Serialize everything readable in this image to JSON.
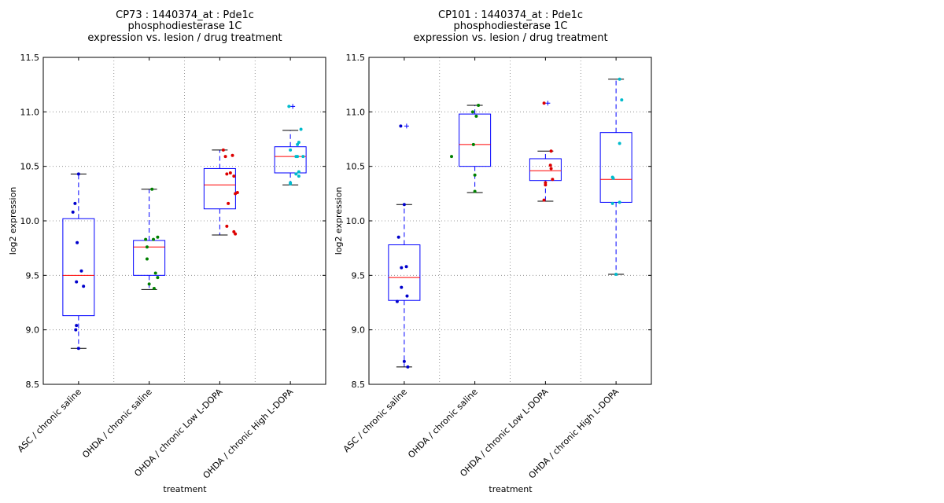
{
  "chart_data": [
    {
      "type": "box",
      "title_lines": [
        "CP73 : 1440374_at : Pde1c",
        "phosphodiesterase 1C",
        "expression vs. lesion / drug treatment"
      ],
      "xlabel": "treatment",
      "ylabel": "log2 expression",
      "ylim": [
        8.5,
        11.5
      ],
      "yticks": [
        "8.5",
        "9.0",
        "9.5",
        "10.0",
        "10.5",
        "11.0",
        "11.5"
      ],
      "grid": true,
      "categories": [
        "ASC / chronic saline",
        "OHDA / chronic saline",
        "OHDA / chronic Low L-DOPA",
        "OHDA / chronic High L-DOPA"
      ],
      "colors": [
        "#0000cc",
        "#008000",
        "#dd0000",
        "#00bbcc"
      ],
      "boxes": [
        {
          "whisker_low": 8.83,
          "q1": 9.13,
          "median": 9.5,
          "q3": 10.02,
          "whisker_high": 10.43,
          "outliers": []
        },
        {
          "whisker_low": 9.37,
          "q1": 9.5,
          "median": 9.76,
          "q3": 9.82,
          "whisker_high": 10.29,
          "outliers": []
        },
        {
          "whisker_low": 9.87,
          "q1": 10.11,
          "median": 10.33,
          "q3": 10.48,
          "whisker_high": 10.65,
          "outliers": []
        },
        {
          "whisker_low": 10.33,
          "q1": 10.44,
          "median": 10.59,
          "q3": 10.68,
          "whisker_high": 10.83,
          "outliers": [
            11.05
          ]
        }
      ],
      "points": [
        [
          {
            "dx": 0.0,
            "y": 10.43
          },
          {
            "dx": -0.05,
            "y": 10.16
          },
          {
            "dx": -0.08,
            "y": 10.08
          },
          {
            "dx": -0.02,
            "y": 9.8
          },
          {
            "dx": 0.04,
            "y": 9.54
          },
          {
            "dx": -0.03,
            "y": 9.44
          },
          {
            "dx": 0.07,
            "y": 9.4
          },
          {
            "dx": -0.03,
            "y": 9.04
          },
          {
            "dx": -0.04,
            "y": 9.0
          },
          {
            "dx": 0.0,
            "y": 8.83
          }
        ],
        [
          {
            "dx": 0.04,
            "y": 10.29
          },
          {
            "dx": 0.12,
            "y": 9.85
          },
          {
            "dx": -0.05,
            "y": 9.83
          },
          {
            "dx": 0.06,
            "y": 9.83
          },
          {
            "dx": -0.03,
            "y": 9.76
          },
          {
            "dx": -0.03,
            "y": 9.65
          },
          {
            "dx": 0.09,
            "y": 9.52
          },
          {
            "dx": 0.12,
            "y": 9.48
          },
          {
            "dx": 0.0,
            "y": 9.42
          },
          {
            "dx": 0.07,
            "y": 9.38
          }
        ],
        [
          {
            "dx": 0.05,
            "y": 10.65
          },
          {
            "dx": 0.18,
            "y": 10.6
          },
          {
            "dx": 0.08,
            "y": 10.59
          },
          {
            "dx": 0.15,
            "y": 10.44
          },
          {
            "dx": 0.1,
            "y": 10.43
          },
          {
            "dx": 0.2,
            "y": 10.41
          },
          {
            "dx": 0.25,
            "y": 10.26
          },
          {
            "dx": 0.22,
            "y": 10.25
          },
          {
            "dx": 0.12,
            "y": 10.16
          },
          {
            "dx": 0.1,
            "y": 9.95
          },
          {
            "dx": 0.2,
            "y": 9.9
          },
          {
            "dx": 0.22,
            "y": 9.88
          }
        ],
        [
          {
            "dx": -0.02,
            "y": 11.05
          },
          {
            "dx": 0.15,
            "y": 10.84
          },
          {
            "dx": 0.12,
            "y": 10.72
          },
          {
            "dx": 0.1,
            "y": 10.7
          },
          {
            "dx": 0.0,
            "y": 10.65
          },
          {
            "dx": 0.08,
            "y": 10.59
          },
          {
            "dx": 0.1,
            "y": 10.59
          },
          {
            "dx": 0.18,
            "y": 10.59
          },
          {
            "dx": 0.12,
            "y": 10.45
          },
          {
            "dx": 0.08,
            "y": 10.43
          },
          {
            "dx": 0.12,
            "y": 10.41
          },
          {
            "dx": 0.0,
            "y": 10.35
          },
          {
            "dx": 0.0,
            "y": 10.34
          }
        ]
      ]
    },
    {
      "type": "box",
      "title_lines": [
        "CP101 : 1440374_at : Pde1c",
        "phosphodiesterase 1C",
        "expression vs. lesion / drug treatment"
      ],
      "xlabel": "treatment",
      "ylabel": "log2 expression",
      "ylim": [
        8.5,
        11.5
      ],
      "yticks": [
        "8.5",
        "9.0",
        "9.5",
        "10.0",
        "10.5",
        "11.0",
        "11.5"
      ],
      "grid": true,
      "categories": [
        "ASC / chronic saline",
        "OHDA / chronic saline",
        "OHDA / chronic Low L-DOPA",
        "OHDA / chronic High L-DOPA"
      ],
      "colors": [
        "#0000cc",
        "#008000",
        "#dd0000",
        "#00bbcc"
      ],
      "boxes": [
        {
          "whisker_low": 8.66,
          "q1": 9.27,
          "median": 9.48,
          "q3": 9.78,
          "whisker_high": 10.15,
          "outliers": [
            10.87
          ]
        },
        {
          "whisker_low": 10.26,
          "q1": 10.5,
          "median": 10.7,
          "q3": 10.98,
          "whisker_high": 11.06,
          "outliers": []
        },
        {
          "whisker_low": 10.18,
          "q1": 10.37,
          "median": 10.46,
          "q3": 10.57,
          "whisker_high": 10.64,
          "outliers": [
            11.08
          ]
        },
        {
          "whisker_low": 9.51,
          "q1": 10.17,
          "median": 10.38,
          "q3": 10.81,
          "whisker_high": 11.3,
          "outliers": []
        }
      ],
      "points": [
        [
          {
            "dx": -0.05,
            "y": 10.87
          },
          {
            "dx": 0.0,
            "y": 10.15
          },
          {
            "dx": -0.08,
            "y": 9.85
          },
          {
            "dx": -0.04,
            "y": 9.57
          },
          {
            "dx": 0.03,
            "y": 9.58
          },
          {
            "dx": -0.04,
            "y": 9.39
          },
          {
            "dx": 0.04,
            "y": 9.31
          },
          {
            "dx": -0.1,
            "y": 9.26
          },
          {
            "dx": 0.0,
            "y": 8.71
          },
          {
            "dx": 0.05,
            "y": 8.66
          }
        ],
        [
          {
            "dx": 0.05,
            "y": 11.06
          },
          {
            "dx": -0.03,
            "y": 11.0
          },
          {
            "dx": 0.02,
            "y": 10.96
          },
          {
            "dx": -0.02,
            "y": 10.7
          },
          {
            "dx": -0.33,
            "y": 10.59
          },
          {
            "dx": 0.0,
            "y": 10.42
          },
          {
            "dx": 0.0,
            "y": 10.27
          }
        ],
        [
          {
            "dx": -0.02,
            "y": 11.08
          },
          {
            "dx": 0.08,
            "y": 10.64
          },
          {
            "dx": 0.07,
            "y": 10.51
          },
          {
            "dx": 0.08,
            "y": 10.48
          },
          {
            "dx": 0.1,
            "y": 10.38
          },
          {
            "dx": 0.0,
            "y": 10.35
          },
          {
            "dx": 0.0,
            "y": 10.33
          },
          {
            "dx": -0.02,
            "y": 10.19
          }
        ],
        [
          {
            "dx": 0.05,
            "y": 11.3
          },
          {
            "dx": 0.08,
            "y": 11.11
          },
          {
            "dx": 0.05,
            "y": 10.71
          },
          {
            "dx": -0.05,
            "y": 10.4
          },
          {
            "dx": -0.04,
            "y": 10.39
          },
          {
            "dx": 0.05,
            "y": 10.17
          },
          {
            "dx": -0.05,
            "y": 10.16
          },
          {
            "dx": 0.0,
            "y": 9.51
          }
        ]
      ]
    }
  ]
}
